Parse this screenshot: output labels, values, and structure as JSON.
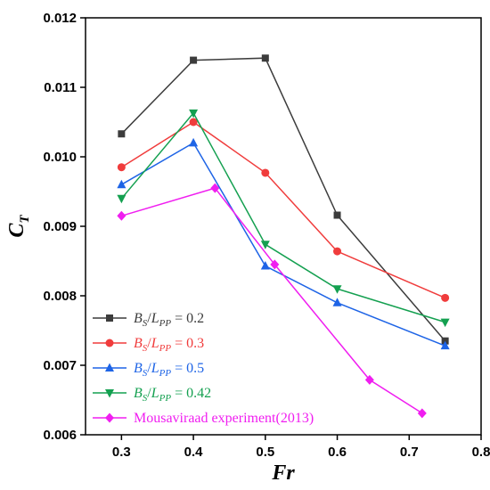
{
  "chart_data": {
    "type": "line",
    "xlabel": "Fr",
    "ylabel": {
      "main": "C",
      "sub": "T"
    },
    "xlim": [
      0.25,
      0.8
    ],
    "ylim": [
      0.006,
      0.012
    ],
    "xticks": [
      "0.3",
      "0.4",
      "0.5",
      "0.6",
      "0.7",
      "0.8"
    ],
    "yticks": [
      "0.006",
      "0.007",
      "0.008",
      "0.009",
      "0.010",
      "0.011",
      "0.012"
    ],
    "grid": false,
    "legend_position": "bottom-left",
    "series": [
      {
        "name": "B_S/L_PP = 0.2",
        "legend": {
          "b": "B",
          "bsub": "S",
          "slash": "/",
          "l": "L",
          "lsub": "PP",
          "value": " = 0.2"
        },
        "color": "#3c3c3c",
        "marker": "square",
        "x": [
          0.3,
          0.4,
          0.5,
          0.6,
          0.75
        ],
        "y": [
          0.01033,
          0.01139,
          0.01142,
          0.00916,
          0.00735
        ]
      },
      {
        "name": "B_S/L_PP = 0.3",
        "legend": {
          "b": "B",
          "bsub": "S",
          "slash": "/",
          "l": "L",
          "lsub": "PP",
          "value": " = 0.3"
        },
        "color": "#f03c3c",
        "marker": "circle",
        "x": [
          0.3,
          0.4,
          0.5,
          0.6,
          0.75
        ],
        "y": [
          0.00985,
          0.0105,
          0.00977,
          0.00864,
          0.00797
        ]
      },
      {
        "name": "B_S/L_PP = 0.5",
        "legend": {
          "b": "B",
          "bsub": "S",
          "slash": "/",
          "l": "L",
          "lsub": "PP",
          "value": " = 0.5"
        },
        "color": "#1e64e6",
        "marker": "triangle-up",
        "x": [
          0.3,
          0.4,
          0.5,
          0.6,
          0.75
        ],
        "y": [
          0.0096,
          0.0102,
          0.00843,
          0.0079,
          0.00728
        ]
      },
      {
        "name": "B_S/L_PP = 0.42",
        "legend": {
          "b": "B",
          "bsub": "S",
          "slash": "/",
          "l": "L",
          "lsub": "PP",
          "value": " = 0.42"
        },
        "color": "#14a050",
        "marker": "triangle-down",
        "x": [
          0.3,
          0.4,
          0.5,
          0.6,
          0.75
        ],
        "y": [
          0.0094,
          0.01063,
          0.00874,
          0.0081,
          0.00762
        ]
      },
      {
        "name": "Mousaviraad experiment(2013)",
        "legend": {
          "text": "Mousaviraad experiment(2013)"
        },
        "color": "#f01ef0",
        "marker": "diamond",
        "x": [
          0.3,
          0.43,
          0.513,
          0.645,
          0.718
        ],
        "y": [
          0.00915,
          0.00955,
          0.00845,
          0.00679,
          0.00631
        ]
      }
    ]
  }
}
